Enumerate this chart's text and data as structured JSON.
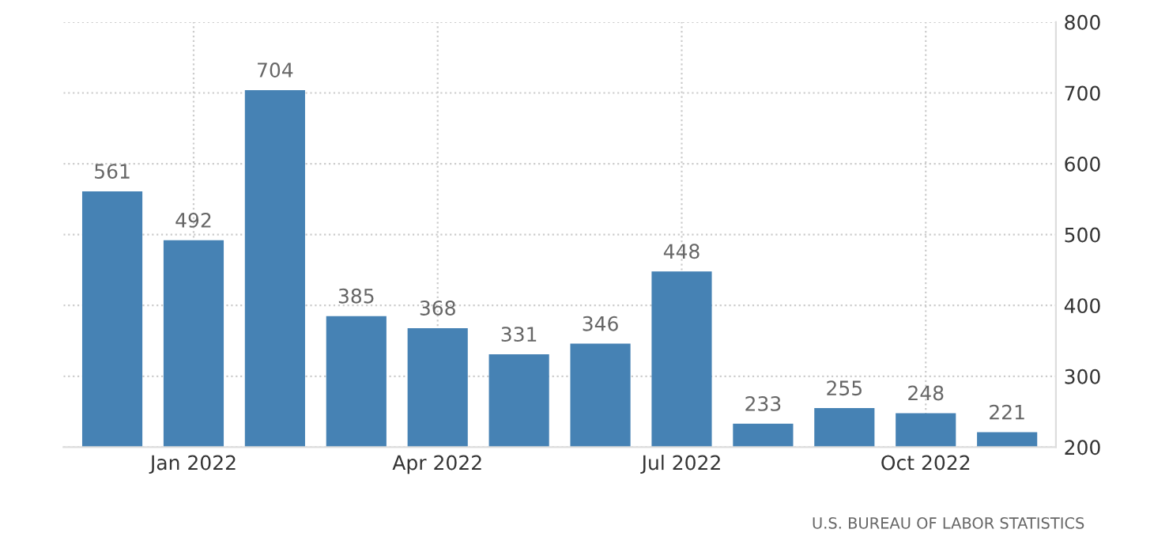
{
  "chart_data": {
    "type": "bar",
    "categories": [
      null,
      "Jan 2022",
      null,
      null,
      "Apr 2022",
      null,
      null,
      "Jul 2022",
      null,
      null,
      "Oct 2022",
      null
    ],
    "values": [
      561,
      492,
      704,
      385,
      368,
      331,
      346,
      448,
      233,
      255,
      248,
      221
    ],
    "color": "#4682b4",
    "ylim": [
      200,
      800
    ],
    "yticks": [
      200,
      300,
      400,
      500,
      600,
      700,
      800
    ],
    "grid": true,
    "data_labels": true,
    "annotations": [
      "U.S. BUREAU OF LABOR STATISTICS"
    ]
  }
}
